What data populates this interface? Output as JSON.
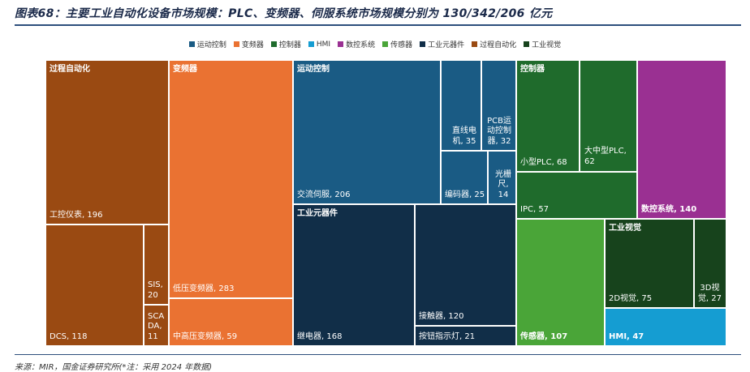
{
  "title": "图表68：主要工业自动化设备市场规模：PLC、变频器、伺服系统市场规模分别为 130/342/206 亿元",
  "source": "来源：MIR，国金证券研究所(*注：采用 2024 年数据)",
  "chart_data": {
    "type": "treemap",
    "unit": "亿元",
    "legend": [
      {
        "name": "运动控制",
        "color": "#1a5b84"
      },
      {
        "name": "变频器",
        "color": "#ea7232"
      },
      {
        "name": "控制器",
        "color": "#1f6b2c"
      },
      {
        "name": "HMI",
        "color": "#159dd2"
      },
      {
        "name": "数控系统",
        "color": "#9a3092"
      },
      {
        "name": "传感器",
        "color": "#4aa538"
      },
      {
        "name": "工业元器件",
        "color": "#112e48"
      },
      {
        "name": "过程自动化",
        "color": "#9a4a12"
      },
      {
        "name": "工业视觉",
        "color": "#17431c"
      }
    ],
    "groups": [
      {
        "name": "过程自动化",
        "color": "#9a4a12",
        "items": [
          {
            "name": "工控仪表",
            "value": 196
          },
          {
            "name": "DCS",
            "value": 118
          },
          {
            "name": "SIS",
            "value": 20
          },
          {
            "name": "SCADA",
            "value": 11
          }
        ]
      },
      {
        "name": "变频器",
        "color": "#ea7232",
        "items": [
          {
            "name": "低压变频器",
            "value": 283
          },
          {
            "name": "中高压变频器",
            "value": 59
          }
        ]
      },
      {
        "name": "运动控制",
        "color": "#1a5b84",
        "items": [
          {
            "name": "交流伺服",
            "value": 206
          },
          {
            "name": "直线电机",
            "value": 35
          },
          {
            "name": "PCB运动控制器",
            "value": 32
          },
          {
            "name": "编码器",
            "value": 25
          },
          {
            "name": "光栅尺",
            "value": 14
          }
        ]
      },
      {
        "name": "控制器",
        "color": "#1f6b2c",
        "items": [
          {
            "name": "小型PLC",
            "value": 68
          },
          {
            "name": "大中型PLC",
            "value": 62
          },
          {
            "name": "IPC",
            "value": 57
          }
        ]
      },
      {
        "name": "数控系统",
        "color": "#9a3092",
        "items": [
          {
            "name": "数控系统",
            "value": 140
          }
        ]
      },
      {
        "name": "工业元器件",
        "color": "#112e48",
        "items": [
          {
            "name": "继电器",
            "value": 168
          },
          {
            "name": "接触器",
            "value": 120
          },
          {
            "name": "按钮指示灯",
            "value": 21
          }
        ]
      },
      {
        "name": "传感器",
        "color": "#4aa538",
        "items": [
          {
            "name": "传感器",
            "value": 107
          }
        ]
      },
      {
        "name": "工业视觉",
        "color": "#17431c",
        "items": [
          {
            "name": "2D视觉",
            "value": 75
          },
          {
            "name": "3D视觉",
            "value": 27
          }
        ]
      },
      {
        "name": "HMI",
        "color": "#159dd2",
        "items": [
          {
            "name": "HMI",
            "value": 47
          }
        ]
      }
    ]
  },
  "tiles": {
    "gongkong": {
      "text": "工控仪表, 196",
      "caption": "过程自动化"
    },
    "dcs": {
      "text": "DCS, 118"
    },
    "sis": {
      "text": "SIS,\n20"
    },
    "scada": {
      "text": "SCA\nDA,\n11"
    },
    "diya": {
      "text": "低压变频器, 283",
      "caption": "变频器"
    },
    "zhonggao": {
      "text": "中高压变频器, 59"
    },
    "jiaoliu": {
      "text": "交流伺服, 206",
      "caption": "运动控制"
    },
    "zhixian": {
      "text": "直线电\n机, 35"
    },
    "pcb": {
      "text": "PCB运\n动控制\n器, 32"
    },
    "bianma": {
      "text": "编码器, 25"
    },
    "guangshan": {
      "text": "光栅\n尺,\n14"
    },
    "jidian": {
      "text": "继电器, 168",
      "caption": "工业元器件"
    },
    "jiechu": {
      "text": "接触器, 120"
    },
    "anniu": {
      "text": "按钮指示灯, 21"
    },
    "xiaoxing": {
      "text": "小型PLC, 68",
      "caption": "控制器"
    },
    "dazhong": {
      "text": "大中型PLC,\n62"
    },
    "ipc": {
      "text": "IPC, 57"
    },
    "shukong": {
      "text": "数控系统, 140"
    },
    "chuangan": {
      "text": "传感器, 107"
    },
    "vision2d": {
      "text": "2D视觉, 75",
      "caption": "工业视觉"
    },
    "vision3d": {
      "text": "3D视\n觉, 27"
    },
    "hmi": {
      "text": "HMI, 47"
    }
  }
}
